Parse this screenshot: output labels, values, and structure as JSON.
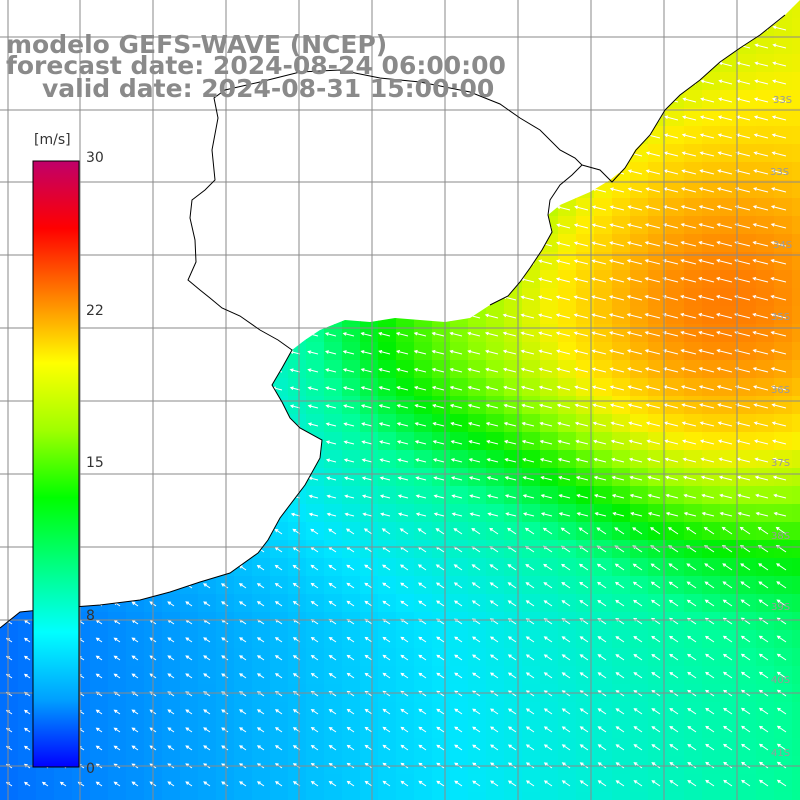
{
  "title": {
    "line1": "modelo GEFS-WAVE (NCEP)",
    "line2": "forecast date: 2024-08-24 06:00:00",
    "line3": "valid date: 2024-08-31 15:00:00"
  },
  "colorbar": {
    "unit": "[m/s]",
    "min": 0,
    "max": 30,
    "ticks": [
      "30",
      "22",
      "15",
      "8",
      "0"
    ],
    "tick_values": [
      30,
      22,
      15,
      8,
      0
    ],
    "colors": [
      "#0000ff",
      "#00a0ff",
      "#00ffff",
      "#00ff80",
      "#00ff00",
      "#a0ff00",
      "#ffff00",
      "#ff8000",
      "#ff0000",
      "#c0006a"
    ]
  },
  "map": {
    "lat_labels": [
      "33S",
      "34S",
      "35S",
      "36S",
      "37S",
      "38S",
      "39S",
      "40S",
      "41S"
    ],
    "land_color": "#ffffff",
    "grid_color": "#8a8a8a",
    "coast_color": "#000000",
    "arrow_color": "#ffffff"
  },
  "chart_data": {
    "type": "heatmap",
    "variable": "wind speed",
    "unit": "[m/s]",
    "title": "modelo GEFS-WAVE (NCEP)",
    "lat_range": [
      "33S",
      "41S"
    ],
    "color_range": [
      0,
      30
    ],
    "approx_max_wind": 22,
    "approx_min_wind": 3,
    "arrow_direction": "toward southwest / west"
  }
}
